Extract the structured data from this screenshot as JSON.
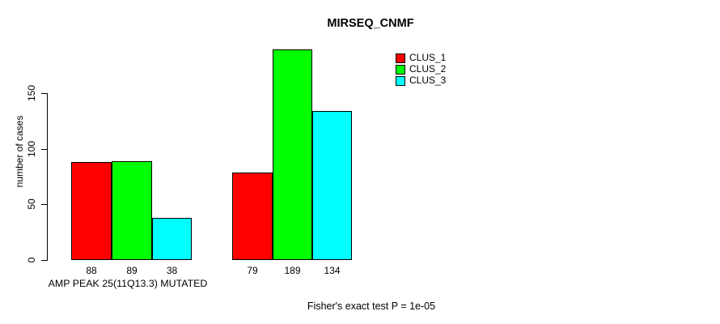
{
  "title": "MIRSEQ_CNMF",
  "y_axis": {
    "label": "number of cases",
    "ticks": [
      "0",
      "50",
      "100",
      "150"
    ]
  },
  "x_axis": {
    "group_label": "AMP PEAK 25(11Q13.3) MUTATED"
  },
  "footer": "Fisher's exact test P = 1e-05",
  "colors": {
    "background": "#FFFFFF",
    "bar_border": "#000000",
    "text": "#000000"
  },
  "chart_data": {
    "type": "bar",
    "title": "MIRSEQ_CNMF",
    "xlabel": "",
    "ylabel": "number of cases",
    "ylim": [
      0,
      195
    ],
    "yticks": [
      0,
      50,
      100,
      150
    ],
    "grid": false,
    "legend_position": "top-right",
    "categories": [
      "AMP PEAK 25(11Q13.3) MUTATED",
      ""
    ],
    "series": [
      {
        "name": "CLUS_1",
        "color": "#FF0000",
        "values": [
          88,
          79
        ]
      },
      {
        "name": "CLUS_2",
        "color": "#00FF00",
        "values": [
          89,
          189
        ]
      },
      {
        "name": "CLUS_3",
        "color": "#00FFFF",
        "values": [
          38,
          134
        ]
      }
    ],
    "bar_value_labels_shown": true,
    "annotation": "Fisher's exact test P = 1e-05"
  }
}
